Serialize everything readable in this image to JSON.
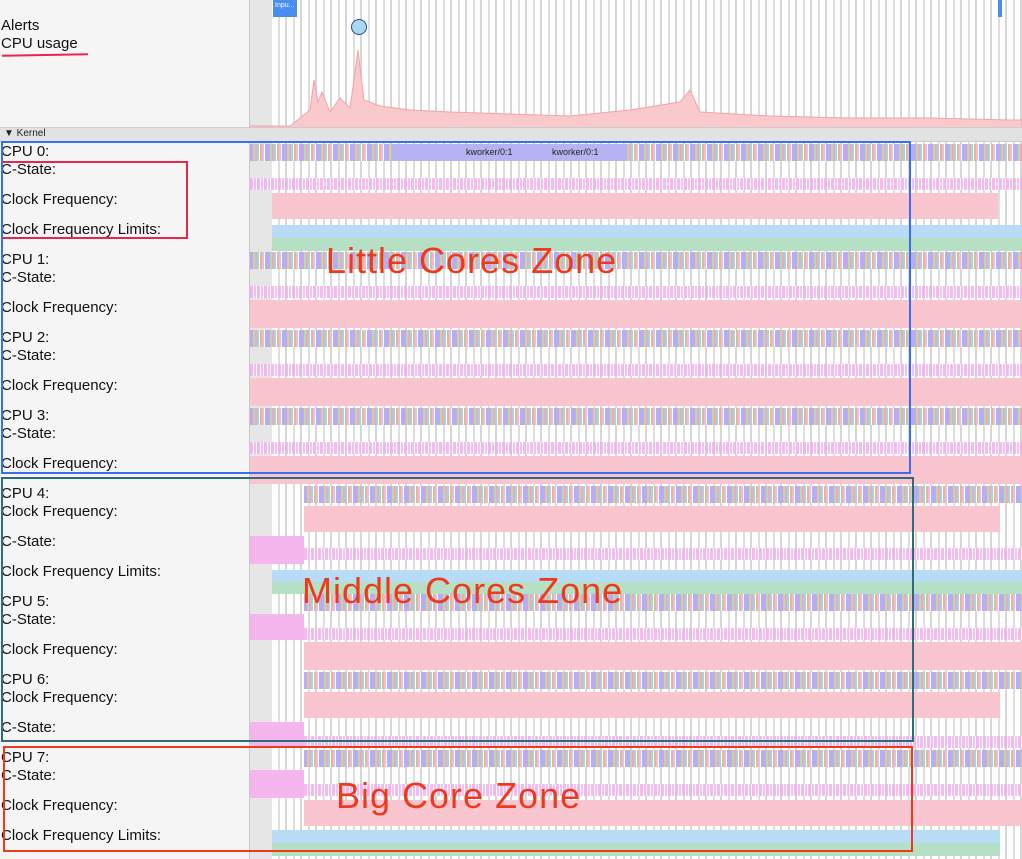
{
  "header": {
    "alerts_label": "Alerts",
    "cpu_usage_label": "CPU usage",
    "input_chip": "Inpu..."
  },
  "kernel": {
    "label": "▼ Kernel"
  },
  "rows": {
    "cpu0": "CPU 0:",
    "cpu0_cstate": "C-State:",
    "cpu0_freq": "Clock Frequency:",
    "cpu0_limits": "Clock Frequency Limits:",
    "cpu1": "CPU 1:",
    "cpu1_cstate": "C-State:",
    "cpu1_freq": "Clock Frequency:",
    "cpu2": "CPU 2:",
    "cpu2_cstate": "C-State:",
    "cpu2_freq": "Clock Frequency:",
    "cpu3": "CPU 3:",
    "cpu3_cstate": "C-State:",
    "cpu3_freq": "Clock Frequency:",
    "cpu4": "CPU 4:",
    "cpu4_freq": "Clock Frequency:",
    "cpu4_cstate": "C-State:",
    "cpu4_limits": "Clock Frequency Limits:",
    "cpu5": "CPU 5:",
    "cpu5_cstate": "C-State:",
    "cpu5_freq": "Clock Frequency:",
    "cpu6": "CPU 6:",
    "cpu6_freq": "Clock Frequency:",
    "cpu6_cstate": "C-State:",
    "cpu7": "CPU 7:",
    "cpu7_cstate": "C-State:",
    "cpu7_freq": "Clock Frequency:",
    "cpu7_limits": "Clock Frequency Limits:"
  },
  "threads": {
    "kworker_a": "kworker/0:1",
    "kworker_b": "kworker/0:1"
  },
  "zones": {
    "little": "Little Cores Zone",
    "middle": "Middle Cores Zone",
    "big": "Big Core Zone"
  },
  "colors": {
    "annotation_red": "#ee3a1c",
    "little_zone_border": "#3a6df0",
    "middle_zone_border": "#2f6b7a",
    "highlight_pink": "#e8244f"
  }
}
